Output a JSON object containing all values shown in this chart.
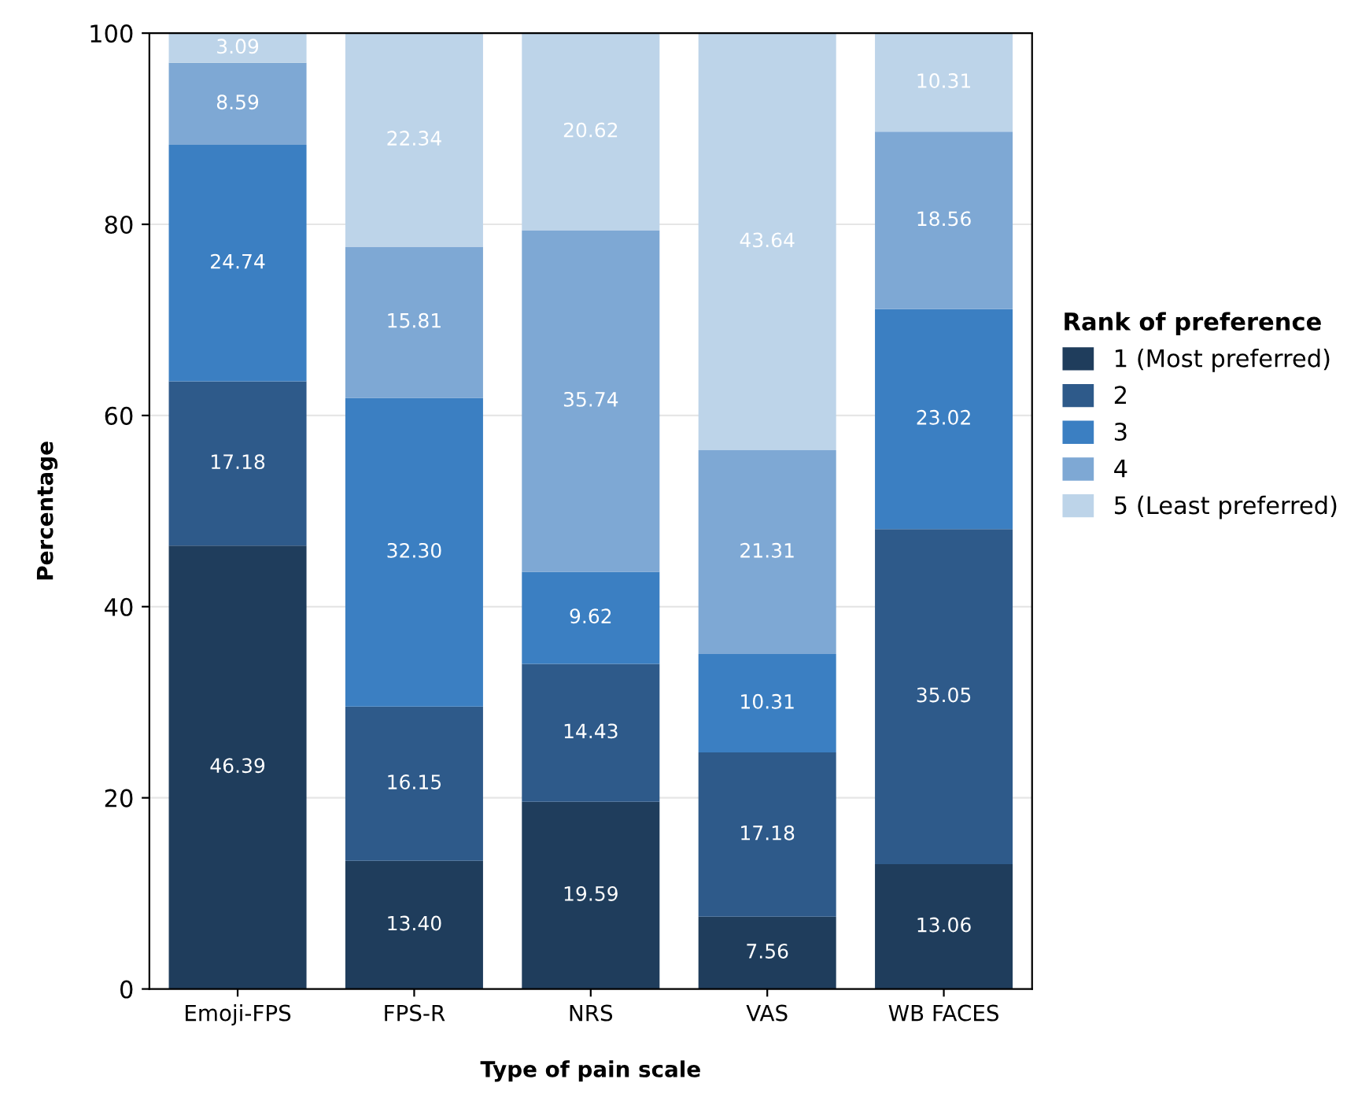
{
  "chart_data": {
    "type": "bar",
    "stacked": true,
    "xlabel": "Type of pain scale",
    "ylabel": "Percentage",
    "legend_title": "Rank of preference",
    "legend": "right",
    "categories": [
      "Emoji-FPS",
      "FPS-R",
      "NRS",
      "VAS",
      "WB FACES"
    ],
    "ylim": [
      0,
      100
    ],
    "yticks": [
      0,
      20,
      40,
      60,
      80,
      100
    ],
    "grid": "y",
    "series": [
      {
        "name": "1 (Most preferred)",
        "color": "#1f3d5c",
        "values": [
          46.39,
          13.4,
          19.59,
          7.56,
          13.06
        ],
        "value_labels": [
          "46.39",
          "13.40",
          "19.59",
          "7.56",
          "13.06"
        ]
      },
      {
        "name": "2",
        "color": "#2e5a8a",
        "values": [
          17.18,
          16.15,
          14.43,
          17.18,
          35.05
        ],
        "value_labels": [
          "17.18",
          "16.15",
          "14.43",
          "17.18",
          "35.05"
        ]
      },
      {
        "name": "3",
        "color": "#3b7fc2",
        "values": [
          24.74,
          32.3,
          9.62,
          10.31,
          23.02
        ],
        "value_labels": [
          "24.74",
          "32.30",
          "9.62",
          "10.31",
          "23.02"
        ]
      },
      {
        "name": "4",
        "color": "#7ea8d4",
        "values": [
          8.59,
          15.81,
          35.74,
          21.31,
          18.56
        ],
        "value_labels": [
          "8.59",
          "15.81",
          "35.74",
          "21.31",
          "18.56"
        ]
      },
      {
        "name": "5 (Least preferred)",
        "color": "#bdd4e9",
        "values": [
          3.09,
          22.34,
          20.62,
          43.64,
          10.31
        ],
        "value_labels": [
          "3.09",
          "22.34",
          "20.62",
          "43.64",
          "10.31"
        ]
      }
    ]
  }
}
